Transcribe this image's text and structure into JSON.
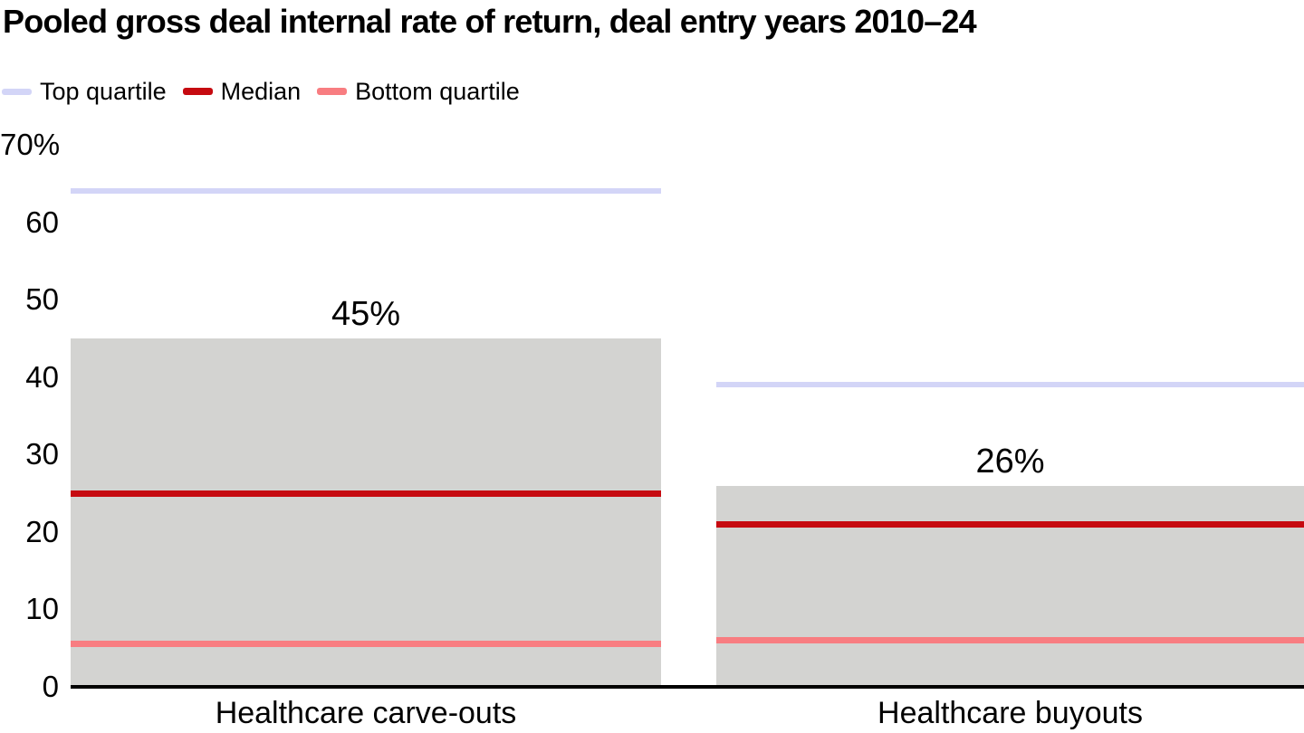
{
  "title": "Pooled gross deal internal rate of return, deal entry years 2010–24",
  "legend": [
    {
      "label": "Top quartile",
      "color": "#d3d5f7"
    },
    {
      "label": "Median",
      "color": "#c60a10"
    },
    {
      "label": "Bottom quartile",
      "color": "#f87d81"
    }
  ],
  "colors": {
    "bar": "#d3d3d1",
    "top_quartile": "#d3d5f7",
    "median": "#c60a10",
    "bottom_quartile": "#f87d81",
    "axis": "#000000",
    "background": "#ffffff",
    "text": "#000000"
  },
  "chart_data": {
    "type": "bar",
    "title": "Pooled gross deal internal rate of return, deal entry years 2010–24",
    "categories": [
      "Healthcare carve-outs",
      "Healthcare buyouts"
    ],
    "series": [
      {
        "name": "Pooled gross deal IRR",
        "role": "bar",
        "values": [
          45,
          26
        ],
        "labels": [
          "45%",
          "26%"
        ],
        "color": "#d3d3d1"
      },
      {
        "name": "Top quartile",
        "role": "line",
        "values": [
          64,
          39
        ],
        "color": "#d3d5f7",
        "thickness": 6
      },
      {
        "name": "Median",
        "role": "line",
        "values": [
          25,
          21
        ],
        "color": "#c60a10",
        "thickness": 7
      },
      {
        "name": "Bottom quartile",
        "role": "line",
        "values": [
          5.5,
          6
        ],
        "color": "#f87d81",
        "thickness": 7
      }
    ],
    "xlabel": "",
    "ylabel": "",
    "ylim": [
      0,
      70
    ],
    "yticks": [
      0,
      10,
      20,
      30,
      40,
      50,
      60,
      70
    ],
    "ytick_labels": [
      "0",
      "10",
      "20",
      "30",
      "40",
      "50",
      "60",
      "70%"
    ],
    "grid": false,
    "legend_position": "top-left",
    "legend_entries": [
      "Top quartile",
      "Median",
      "Bottom quartile"
    ]
  }
}
